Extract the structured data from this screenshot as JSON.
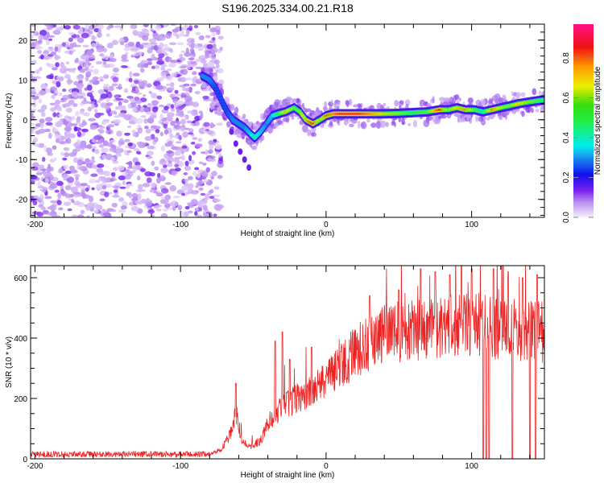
{
  "title": "S196.2025.334.00.21.R18",
  "chart_data": [
    {
      "type": "heatmap",
      "title": "S196.2025.334.00.21.R18",
      "xlabel": "Height of straight line (km)",
      "ylabel": "Frequency (Hz)",
      "xlim": [
        -203,
        150
      ],
      "ylim": [
        -24.5,
        24
      ],
      "xticks": [
        -200,
        -100,
        0,
        100
      ],
      "yticks": [
        -20,
        -10,
        0,
        10,
        20
      ],
      "noise_region_km": [
        -203,
        -78
      ],
      "ridge": [
        [
          -85,
          11,
          0.3
        ],
        [
          -80,
          10,
          0.3
        ],
        [
          -76,
          8,
          0.25
        ],
        [
          -72,
          5,
          0.25
        ],
        [
          -68,
          2,
          0.25
        ],
        [
          -64,
          0,
          0.3
        ],
        [
          -60,
          -1,
          0.3
        ],
        [
          -56,
          -2,
          0.3
        ],
        [
          -52,
          -3.5,
          0.35
        ],
        [
          -49,
          -4.5,
          0.45
        ],
        [
          -45,
          -3,
          0.35
        ],
        [
          -41,
          -1,
          0.3
        ],
        [
          -37,
          1,
          0.35
        ],
        [
          -33,
          1.5,
          0.5
        ],
        [
          -28,
          2,
          0.75
        ],
        [
          -22,
          3,
          0.55
        ],
        [
          -18,
          2,
          0.6
        ],
        [
          -14,
          0,
          0.75
        ],
        [
          -9,
          -1,
          0.9
        ],
        [
          -4,
          0,
          0.6
        ],
        [
          0,
          1,
          0.85
        ],
        [
          5,
          1.5,
          0.8
        ],
        [
          10,
          1.5,
          0.9
        ],
        [
          20,
          1.5,
          0.9
        ],
        [
          30,
          1.5,
          0.8
        ],
        [
          40,
          1.5,
          0.65
        ],
        [
          50,
          1.6,
          0.6
        ],
        [
          60,
          1.8,
          0.5
        ],
        [
          70,
          2,
          0.55
        ],
        [
          78,
          2.5,
          0.9
        ],
        [
          84,
          2.5,
          0.6
        ],
        [
          90,
          3,
          0.7
        ],
        [
          96,
          2.5,
          0.8
        ],
        [
          102,
          2.5,
          0.55
        ],
        [
          108,
          2,
          0.45
        ],
        [
          114,
          2.5,
          0.8
        ],
        [
          120,
          3,
          0.65
        ],
        [
          126,
          3.5,
          0.6
        ],
        [
          132,
          4,
          0.7
        ],
        [
          140,
          4.5,
          0.6
        ],
        [
          150,
          5,
          0.5
        ]
      ],
      "colorbar": {
        "label": "Normalized spectral amplitude",
        "ticks": [
          "0.0",
          "0.2",
          "0.4",
          "0.6",
          "0.8"
        ],
        "tick_values": [
          0,
          0.2,
          0.4,
          0.6,
          0.8
        ],
        "range": [
          0,
          0.97
        ]
      }
    },
    {
      "type": "line",
      "xlabel": "Height of straight line (km)",
      "ylabel": "SNR (10 * v/v)",
      "xlim": [
        -203,
        150
      ],
      "ylim": [
        0,
        640
      ],
      "xticks": [
        -200,
        -100,
        0,
        100
      ],
      "yticks": [
        0,
        200,
        400,
        600
      ],
      "series_color": "#ee2222",
      "baseline": [
        [
          -203,
          15
        ],
        [
          -80,
          15
        ],
        [
          -72,
          30
        ],
        [
          -66,
          80
        ],
        [
          -62,
          160
        ],
        [
          -58,
          60
        ],
        [
          -52,
          40
        ],
        [
          -45,
          60
        ],
        [
          -40,
          120
        ],
        [
          -30,
          170
        ],
        [
          -20,
          200
        ],
        [
          -10,
          220
        ],
        [
          0,
          260
        ],
        [
          10,
          310
        ],
        [
          20,
          350
        ],
        [
          30,
          390
        ],
        [
          40,
          410
        ],
        [
          60,
          430
        ],
        [
          80,
          440
        ],
        [
          100,
          440
        ],
        [
          120,
          430
        ],
        [
          150,
          420
        ]
      ],
      "spikes": [
        [
          -62,
          250
        ],
        [
          -35,
          390
        ],
        [
          -30,
          420
        ],
        [
          -25,
          330
        ],
        [
          -10,
          370
        ],
        [
          30,
          540
        ],
        [
          50,
          560
        ],
        [
          65,
          630
        ],
        [
          75,
          620
        ],
        [
          85,
          610
        ],
        [
          93,
          640
        ],
        [
          100,
          630
        ],
        [
          115,
          630
        ],
        [
          125,
          620
        ],
        [
          135,
          600
        ],
        [
          145,
          610
        ]
      ],
      "dropouts": [
        108,
        110,
        112,
        128,
        140,
        144
      ]
    }
  ]
}
